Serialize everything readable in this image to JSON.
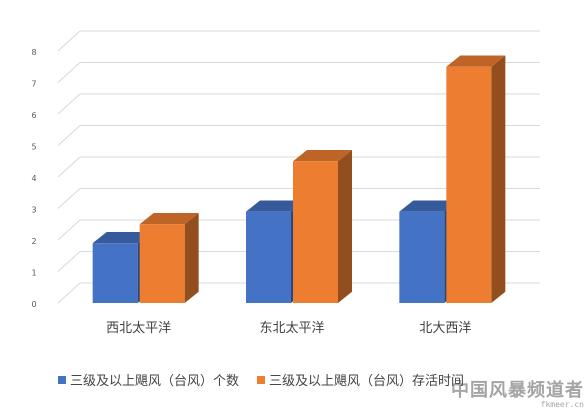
{
  "chart_data": {
    "type": "bar",
    "categories": [
      "西北太平洋",
      "东北太平洋",
      "北大西洋"
    ],
    "series": [
      {
        "name": "三级及以上飓风（台风）个数",
        "values": [
          1.9,
          2.9,
          2.9
        ],
        "color": "#4472c4"
      },
      {
        "name": "三级及以上飓风（台风）存活时间",
        "values": [
          2.5,
          4.5,
          7.5
        ],
        "color": "#ed7d31"
      }
    ],
    "ylim": [
      0,
      8
    ],
    "yticks": [
      "0",
      "1",
      "2",
      "3",
      "4",
      "5",
      "6",
      "7",
      "8"
    ],
    "grid": true,
    "legend_position": "bottom",
    "style": "3d-clustered-column"
  },
  "watermark": {
    "text": "中国风暴频道者",
    "subtext": "fkmeer.cn"
  }
}
